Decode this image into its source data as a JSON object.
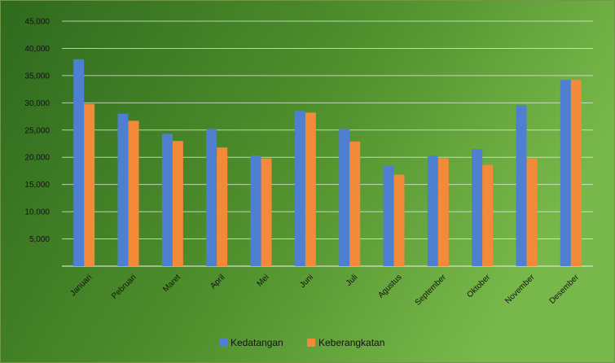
{
  "chart_data": {
    "type": "bar",
    "categories": [
      "Januari",
      "Pebruari",
      "Maret",
      "April",
      "Mei",
      "Juni",
      "Juli",
      "Agustus",
      "September",
      "Oktober",
      "November",
      "Desember"
    ],
    "series": [
      {
        "name": "Kedatangan",
        "color": "#4f7fd0",
        "values": [
          38000,
          28000,
          24300,
          25200,
          20300,
          28500,
          25200,
          18500,
          20300,
          21500,
          29600,
          34200
        ]
      },
      {
        "name": "Keberangkatan",
        "color": "#f28a3a",
        "values": [
          29800,
          26700,
          23000,
          21800,
          19800,
          28200,
          22900,
          16800,
          19800,
          18600,
          19800,
          34200
        ]
      }
    ],
    "title": "",
    "xlabel": "",
    "ylabel": "",
    "ylim": [
      0,
      45000
    ],
    "yticks": [
      0,
      5000,
      10000,
      15000,
      20000,
      25000,
      30000,
      35000,
      40000,
      45000
    ],
    "ytick_labels": [
      "",
      "5,000",
      "10,000",
      "15,000",
      "20,000",
      "25,000",
      "30,000",
      "35,000",
      "40,000",
      "45,000"
    ],
    "grid": true,
    "legend": "bottom",
    "background": [
      "#2f6a1e",
      "#4f8f2c",
      "#78b84a"
    ]
  }
}
